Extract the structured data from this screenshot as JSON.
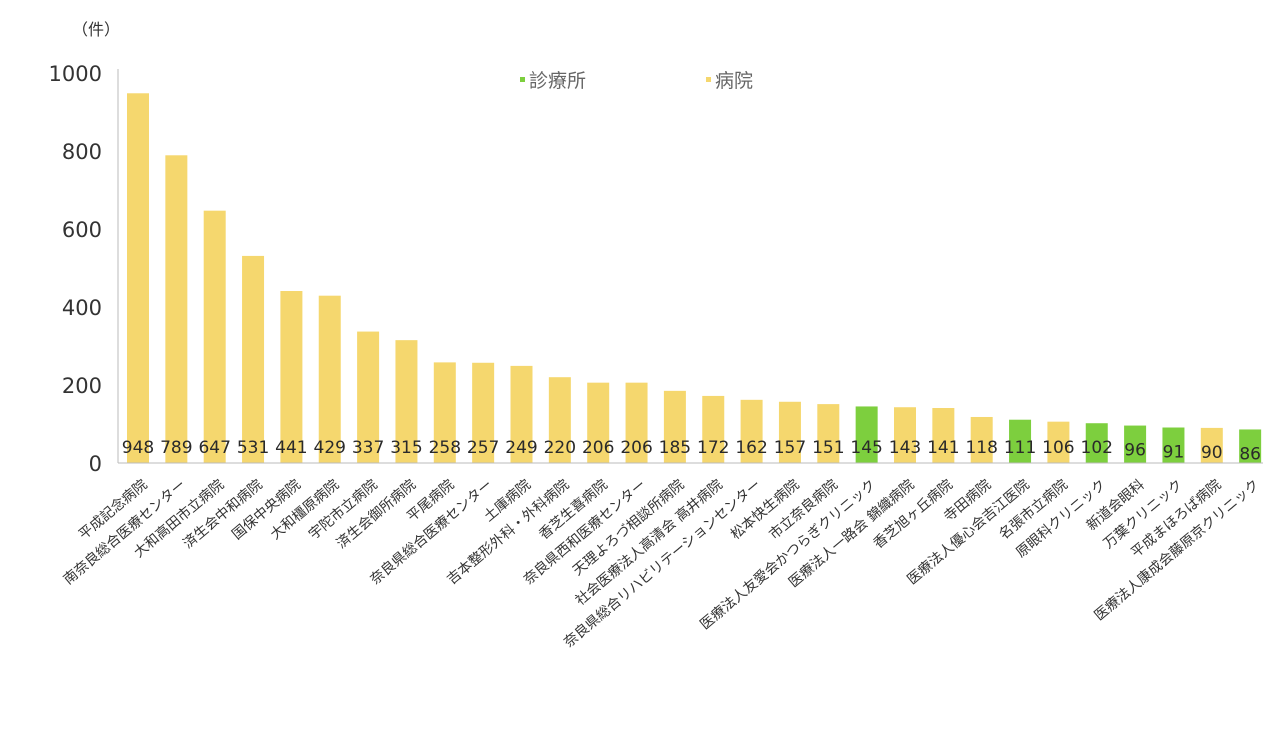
{
  "chart_data": {
    "type": "bar",
    "y_unit": "（件）",
    "ylim": [
      0,
      1000
    ],
    "y_ticks": [
      0,
      200,
      400,
      600,
      800,
      1000
    ],
    "grid": false,
    "legend_position": "top-center",
    "legend": [
      {
        "name": "診療所",
        "color": "#7dcf3e"
      },
      {
        "name": "病院",
        "color": "#f5d76e"
      }
    ],
    "categories": [
      "平成記念病院",
      "南奈良総合医療センター",
      "大和高田市立病院",
      "済生会中和病院",
      "国保中央病院",
      "大和橿原病院",
      "宇陀市立病院",
      "済生会御所病院",
      "平尾病院",
      "奈良県総合医療センター",
      "土庫病院",
      "吉本整形外科・外科病院",
      "香芝生喜病院",
      "奈良県西和医療センター",
      "天理よろづ相談所病院",
      "社会医療法人高清会 高井病院",
      "奈良県総合リハビリテーションセンター",
      "松本快生病院",
      "市立奈良病院",
      "医療法人友愛会かつらぎクリニック",
      "医療法人一路会 錦織病院",
      "香芝旭ヶ丘病院",
      "寺田病院",
      "医療法人優心会吉江医院",
      "名張市立病院",
      "原眼科クリニック",
      "新道会眼科",
      "万葉クリニック",
      "平成まほろば病院",
      "医療法人康成会藤原京クリニック"
    ],
    "values": [
      948,
      789,
      647,
      531,
      441,
      429,
      337,
      315,
      258,
      257,
      249,
      220,
      206,
      206,
      185,
      172,
      162,
      157,
      151,
      145,
      143,
      141,
      118,
      111,
      106,
      102,
      96,
      91,
      90,
      86
    ],
    "types": [
      "病院",
      "病院",
      "病院",
      "病院",
      "病院",
      "病院",
      "病院",
      "病院",
      "病院",
      "病院",
      "病院",
      "病院",
      "病院",
      "病院",
      "病院",
      "病院",
      "病院",
      "病院",
      "病院",
      "診療所",
      "病院",
      "病院",
      "病院",
      "診療所",
      "病院",
      "診療所",
      "診療所",
      "診療所",
      "病院",
      "診療所"
    ]
  }
}
